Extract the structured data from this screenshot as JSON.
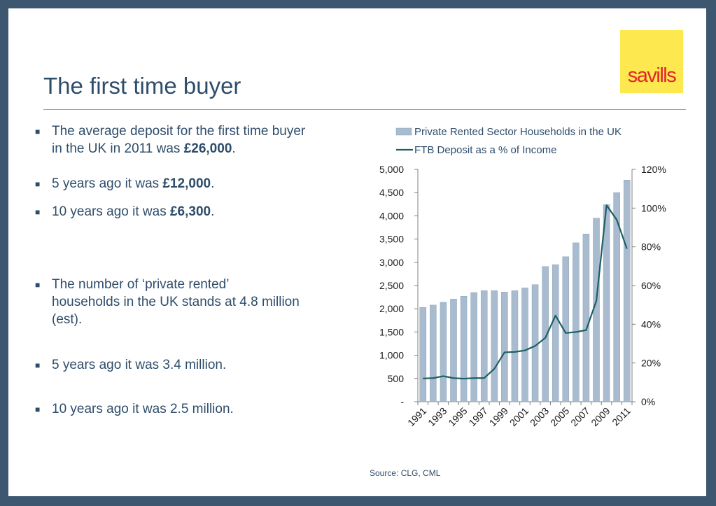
{
  "slide": {
    "title": "The first time buyer",
    "logo_text": "savills",
    "source": "Source: CLG, CML"
  },
  "bullets": [
    {
      "text": "The average deposit for the first time buyer in the UK in 2011 was ",
      "bold": "£26,000",
      "after": "."
    },
    {
      "text": "5 years ago it was ",
      "bold": "£12,000",
      "after": "."
    },
    {
      "text": "10 years ago it was ",
      "bold": "£6,300",
      "after": "."
    },
    {
      "text": "The number of ‘private rented’ households in the UK stands at 4.8 million (est).",
      "bold": "",
      "after": ""
    },
    {
      "text": "5 years ago it was 3.4 million.",
      "bold": "",
      "after": ""
    },
    {
      "text": "10 years ago it was 2.5 million.",
      "bold": "",
      "after": ""
    }
  ],
  "colors": {
    "bar": "#a9bccf",
    "bar_edge": "#8ea4ba",
    "line": "#1d5f66",
    "text": "#2e4d6b",
    "axis_text": "#1a1a1a"
  },
  "chart_data": {
    "type": "bar+line",
    "x": [
      1991,
      1992,
      1993,
      1994,
      1995,
      1996,
      1997,
      1998,
      1999,
      2000,
      2001,
      2002,
      2003,
      2004,
      2005,
      2006,
      2007,
      2008,
      2009,
      2010,
      2011
    ],
    "x_tick_labels": [
      "1991",
      "1993",
      "1995",
      "1997",
      "1999",
      "2001",
      "2003",
      "2005",
      "2007",
      "2009",
      "2011"
    ],
    "series": [
      {
        "name": "Private Rented Sector Households in the UK",
        "type": "bar",
        "axis": "left",
        "values": [
          2030,
          2080,
          2140,
          2210,
          2270,
          2350,
          2390,
          2390,
          2360,
          2390,
          2450,
          2520,
          2910,
          2950,
          3120,
          3420,
          3610,
          3950,
          4240,
          4500,
          4770
        ]
      },
      {
        "name": "FTB Deposit as a % of Income",
        "type": "line",
        "axis": "right",
        "values": [
          12,
          12.2,
          13.2,
          12.2,
          11.9,
          12.2,
          12.2,
          17,
          25.5,
          25.7,
          26.5,
          28.8,
          33,
          44.5,
          35.5,
          36,
          37,
          52,
          101.5,
          94,
          79
        ]
      }
    ],
    "y_left": {
      "ylim": [
        0,
        5000
      ],
      "ticks": [
        0,
        500,
        1000,
        1500,
        2000,
        2500,
        3000,
        3500,
        4000,
        4500,
        5000
      ],
      "tick_labels": [
        "-",
        "500",
        "1,000",
        "1,500",
        "2,000",
        "2,500",
        "3,000",
        "3,500",
        "4,000",
        "4,500",
        "5,000"
      ]
    },
    "y_right": {
      "ylim": [
        0,
        120
      ],
      "ticks": [
        0,
        20,
        40,
        60,
        80,
        100,
        120
      ],
      "tick_labels": [
        "0%",
        "20%",
        "40%",
        "60%",
        "80%",
        "100%",
        "120%"
      ]
    },
    "grid": false,
    "legend": "top-left"
  }
}
